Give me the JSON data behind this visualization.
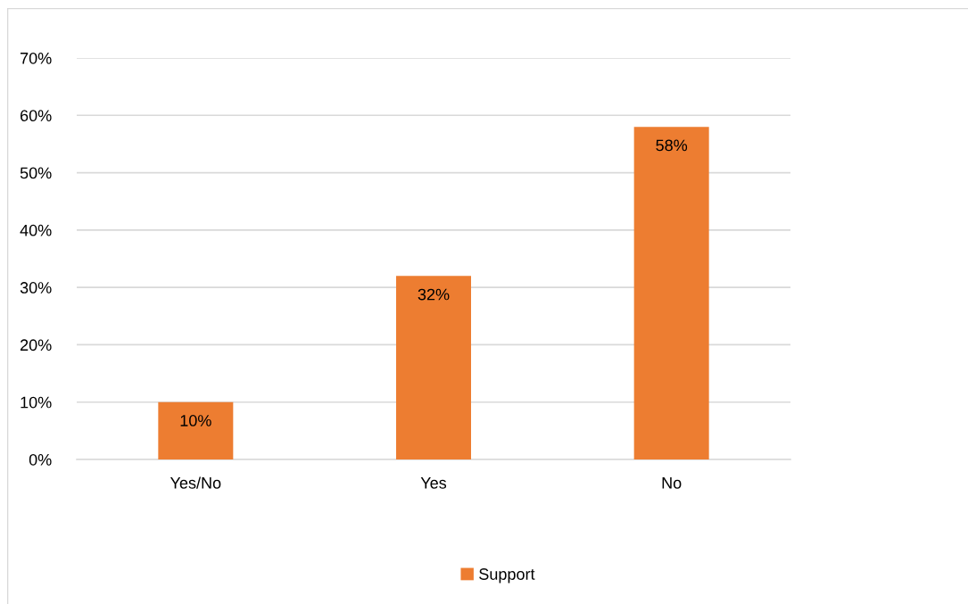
{
  "chart_data": {
    "type": "bar",
    "categories": [
      "Yes/No",
      "Yes",
      "No"
    ],
    "series": [
      {
        "name": "Support",
        "color": "#ed7d31",
        "values": [
          10,
          32,
          58
        ],
        "value_labels": [
          "10%",
          "32%",
          "58%"
        ]
      }
    ],
    "ylim": [
      0,
      70
    ],
    "yticks": [
      {
        "value": 0,
        "label": "0%"
      },
      {
        "value": 10,
        "label": "10%"
      },
      {
        "value": 20,
        "label": "20%"
      },
      {
        "value": 30,
        "label": "30%"
      },
      {
        "value": 40,
        "label": "40%"
      },
      {
        "value": 50,
        "label": "50%"
      },
      {
        "value": 60,
        "label": "60%"
      },
      {
        "value": 70,
        "label": "70%"
      }
    ],
    "grid": "y",
    "legend": "bottom"
  }
}
